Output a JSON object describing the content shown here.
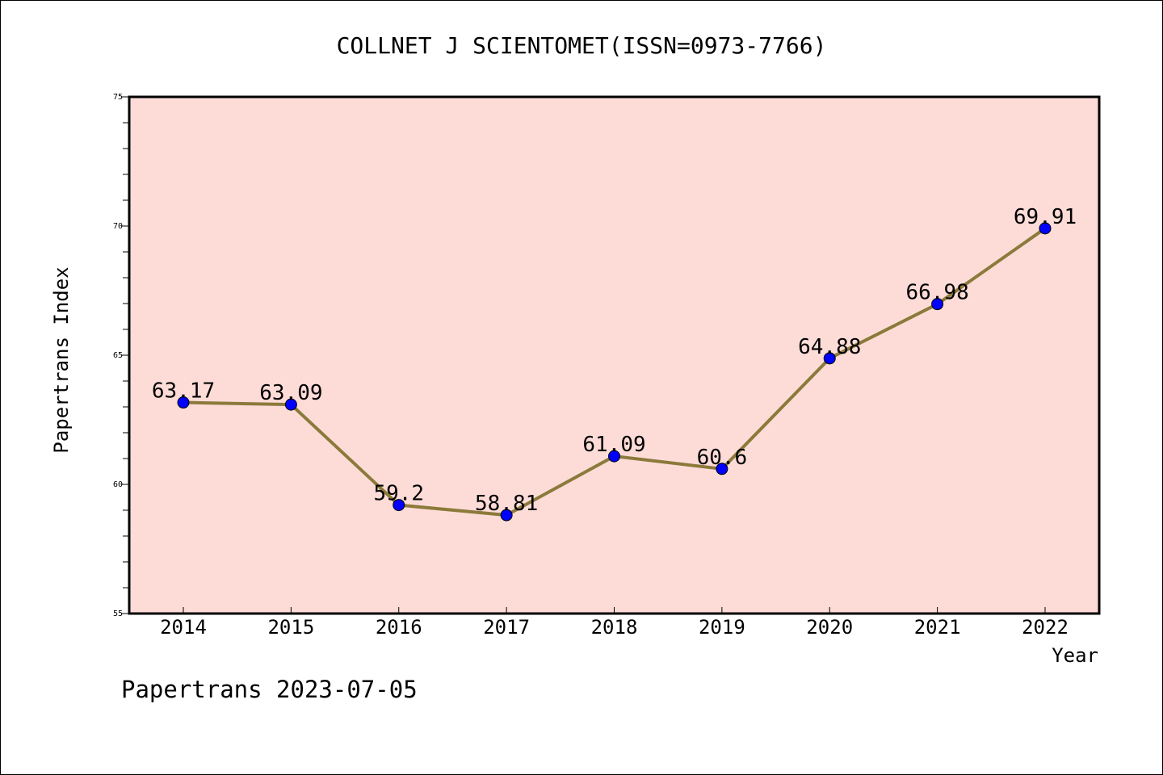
{
  "chart_data": {
    "type": "line",
    "title": "COLLNET J SCIENTOMET(ISSN=0973-7766)",
    "xlabel": "Year",
    "ylabel": "Papertrans Index",
    "categories": [
      "2014",
      "2015",
      "2016",
      "2017",
      "2018",
      "2019",
      "2020",
      "2021",
      "2022"
    ],
    "values": [
      63.17,
      63.09,
      59.2,
      58.81,
      61.09,
      60.6,
      64.88,
      66.98,
      69.91
    ],
    "data_labels": [
      "63.17",
      "63.09",
      "59.2",
      "58.81",
      "61.09",
      "60.6",
      "64.88",
      "66.98",
      "69.91"
    ],
    "ylim": [
      55,
      75
    ],
    "y_ticks": [
      55,
      60,
      65,
      70,
      75
    ],
    "y_minor_step": 1,
    "grid": false,
    "colors": {
      "line": "#8B7A3A",
      "marker": "#0000FF",
      "plot_background": "#FDDCD8",
      "frame": "#000000"
    }
  },
  "footer": "Papertrans 2023-07-05"
}
